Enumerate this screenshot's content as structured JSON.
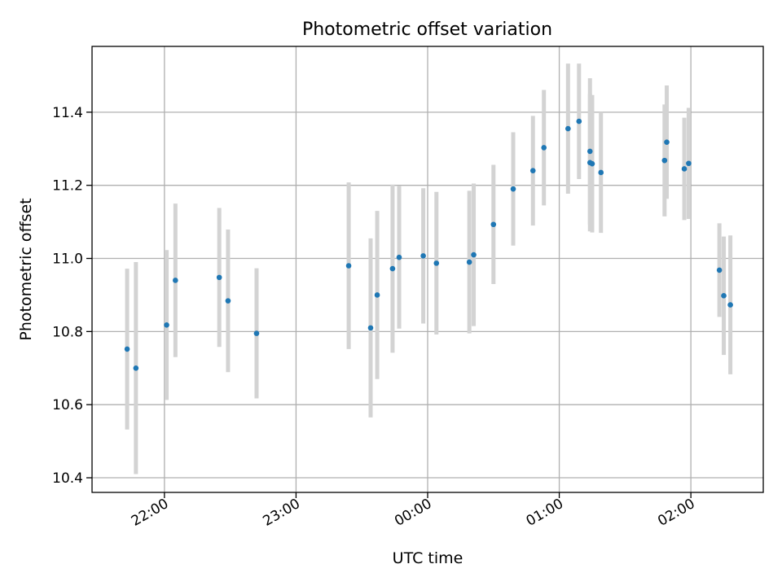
{
  "chart_data": {
    "type": "scatter",
    "title": "Photometric offset variation",
    "xlabel": "UTC time",
    "ylabel": "Photometric offset",
    "x_ticks": [
      "22:00",
      "23:00",
      "00:00",
      "01:00",
      "02:00"
    ],
    "y_ticks": [
      "10.4",
      "10.6",
      "10.8",
      "11.0",
      "11.2",
      "11.4"
    ],
    "xlim": [
      "21:27",
      "02:33"
    ],
    "ylim": [
      10.36,
      11.58
    ],
    "grid": true,
    "colors": {
      "point": "#1f77b4",
      "errorbar": "#d3d3d3",
      "grid": "#b0b0b0"
    },
    "points": [
      {
        "x": "21:43",
        "y": 10.752,
        "err": 0.22
      },
      {
        "x": "21:47",
        "y": 10.7,
        "err": 0.29
      },
      {
        "x": "22:01",
        "y": 10.818,
        "err": 0.205
      },
      {
        "x": "22:05",
        "y": 10.94,
        "err": 0.21
      },
      {
        "x": "22:25",
        "y": 10.948,
        "err": 0.19
      },
      {
        "x": "22:29",
        "y": 10.884,
        "err": 0.195
      },
      {
        "x": "22:42",
        "y": 10.795,
        "err": 0.178
      },
      {
        "x": "23:24",
        "y": 10.98,
        "err": 0.228
      },
      {
        "x": "23:34",
        "y": 10.81,
        "err": 0.245
      },
      {
        "x": "23:37",
        "y": 10.9,
        "err": 0.23
      },
      {
        "x": "23:44",
        "y": 10.972,
        "err": 0.23
      },
      {
        "x": "23:47",
        "y": 11.003,
        "err": 0.195
      },
      {
        "x": "23:58",
        "y": 11.007,
        "err": 0.185
      },
      {
        "x": "00:04",
        "y": 10.987,
        "err": 0.195
      },
      {
        "x": "00:19",
        "y": 10.99,
        "err": 0.195
      },
      {
        "x": "00:21",
        "y": 11.01,
        "err": 0.195
      },
      {
        "x": "00:30",
        "y": 11.093,
        "err": 0.163
      },
      {
        "x": "00:39",
        "y": 11.19,
        "err": 0.155
      },
      {
        "x": "00:48",
        "y": 11.24,
        "err": 0.15
      },
      {
        "x": "00:53",
        "y": 11.303,
        "err": 0.158
      },
      {
        "x": "01:04",
        "y": 11.355,
        "err": 0.178
      },
      {
        "x": "01:09",
        "y": 11.375,
        "err": 0.158
      },
      {
        "x": "01:14",
        "y": 11.262,
        "err": 0.188
      },
      {
        "x": "01:14",
        "y": 11.293,
        "err": 0.2
      },
      {
        "x": "01:15",
        "y": 11.259,
        "err": 0.188
      },
      {
        "x": "01:19",
        "y": 11.235,
        "err": 0.165
      },
      {
        "x": "01:48",
        "y": 11.268,
        "err": 0.153
      },
      {
        "x": "01:49",
        "y": 11.318,
        "err": 0.155
      },
      {
        "x": "01:57",
        "y": 11.245,
        "err": 0.14
      },
      {
        "x": "01:59",
        "y": 11.26,
        "err": 0.152
      },
      {
        "x": "02:13",
        "y": 10.968,
        "err": 0.128
      },
      {
        "x": "02:15",
        "y": 10.898,
        "err": 0.162
      },
      {
        "x": "02:18",
        "y": 10.873,
        "err": 0.19
      }
    ]
  }
}
